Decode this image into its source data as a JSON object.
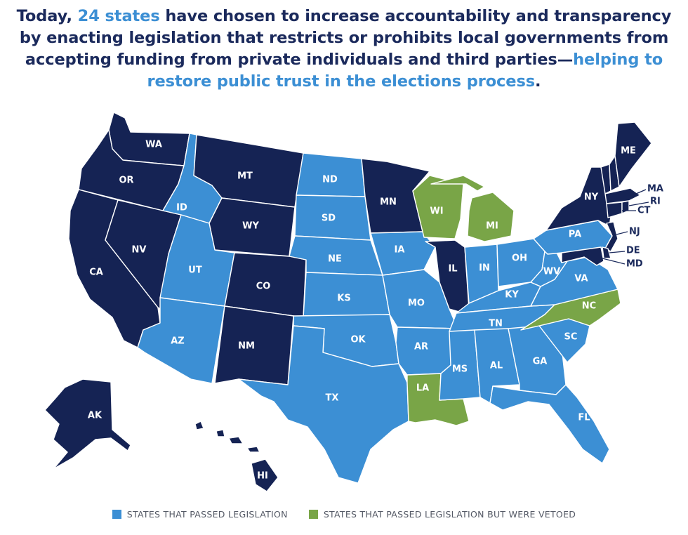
{
  "headline": {
    "part1": "Today, ",
    "count": "24 states",
    "part2": " have chosen to increase accountability and transparency by enacting legislation that restricts or prohibits local governments from accepting funding from private individuals and third parties—",
    "highlight": "helping to restore public trust in the elections process",
    "part3": "."
  },
  "colors": {
    "passed": "#3c8fd4",
    "vetoed": "#79a547",
    "none": "#152354",
    "highlight_text": "#3c8fd4",
    "title_text": "#1b2a5c"
  },
  "legend": [
    {
      "key": "passed",
      "label": "STATES THAT PASSED LEGISLATION"
    },
    {
      "key": "vetoed",
      "label": "STATES THAT PASSED LEGISLATION BUT WERE VETOED"
    }
  ],
  "states": {
    "WA": "none",
    "OR": "none",
    "CA": "none",
    "NV": "none",
    "MT": "none",
    "WY": "none",
    "CO": "none",
    "NM": "none",
    "MN": "none",
    "IL": "none",
    "AK": "none",
    "HI": "none",
    "NY": "none",
    "VT": "none",
    "ME": "none",
    "NH": "none",
    "MA": "none",
    "RI": "none",
    "CT": "none",
    "NJ": "none",
    "DE": "none",
    "MD": "none",
    "ID": "passed",
    "UT": "passed",
    "AZ": "passed",
    "ND": "passed",
    "SD": "passed",
    "NE": "passed",
    "KS": "passed",
    "OK": "passed",
    "TX": "passed",
    "IA": "passed",
    "MO": "passed",
    "AR": "passed",
    "MS": "passed",
    "AL": "passed",
    "GA": "passed",
    "FL": "passed",
    "SC": "passed",
    "TN": "passed",
    "KY": "passed",
    "IN": "passed",
    "OH": "passed",
    "WV": "passed",
    "VA": "passed",
    "PA": "passed",
    "WI": "vetoed",
    "MI": "vetoed",
    "NC": "vetoed",
    "LA": "vetoed"
  }
}
